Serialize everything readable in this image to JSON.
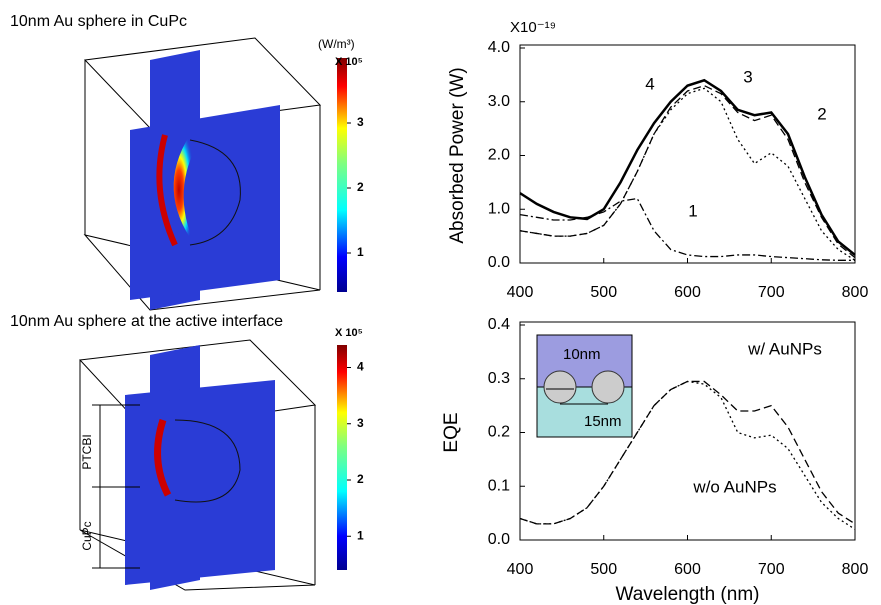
{
  "chart_data": [
    {
      "type": "field",
      "title": "10nm Au sphere in CuPc",
      "units": "(W/m³)",
      "multiplier": "X 10⁵",
      "clim": [
        0.4,
        4.0
      ],
      "cticks": [
        1,
        2,
        3
      ]
    },
    {
      "type": "field",
      "title": "10nm Au sphere at the active interface",
      "multiplier": "X 10⁵",
      "clim": [
        0.4,
        4.4
      ],
      "cticks": [
        1,
        2,
        3,
        4
      ],
      "annotations": [
        "PTCBI",
        "CuPc"
      ]
    },
    {
      "type": "line",
      "ylabel": "Absorbed Power (W)",
      "multiplier": "X10⁻¹⁹",
      "x": [
        400,
        420,
        440,
        460,
        480,
        500,
        520,
        540,
        560,
        580,
        600,
        620,
        640,
        660,
        680,
        700,
        720,
        740,
        760,
        780,
        800
      ],
      "xlim": [
        400,
        800
      ],
      "xticks": [
        400,
        500,
        600,
        700,
        800
      ],
      "ylim": [
        0,
        4
      ],
      "yticks": [
        {
          "value": 0,
          "label": "0.0"
        },
        {
          "value": 1,
          "label": "1.0"
        },
        {
          "value": 2,
          "label": "2.0"
        },
        {
          "value": 3,
          "label": "3.0"
        },
        {
          "value": 4,
          "label": "4.0"
        }
      ],
      "series": [
        {
          "name": "1",
          "color": "#000000",
          "line_style": "dashdot",
          "values": [
            0.9,
            0.85,
            0.8,
            0.8,
            0.85,
            0.95,
            1.15,
            1.2,
            0.6,
            0.25,
            0.15,
            0.12,
            0.12,
            0.15,
            0.15,
            0.12,
            0.1,
            0.08,
            0.06,
            0.05,
            0.05
          ]
        },
        {
          "name": "2",
          "color": "#000000",
          "line_style": "dotted",
          "values": [
            0.6,
            0.55,
            0.5,
            0.5,
            0.55,
            0.7,
            1.1,
            1.7,
            2.4,
            2.85,
            3.15,
            3.25,
            3.0,
            2.3,
            1.85,
            2.05,
            1.8,
            1.2,
            0.6,
            0.25,
            0.05
          ]
        },
        {
          "name": "3",
          "color": "#000000",
          "line_style": "dashed",
          "values": [
            0.6,
            0.55,
            0.5,
            0.5,
            0.55,
            0.7,
            1.1,
            1.7,
            2.4,
            2.9,
            3.2,
            3.3,
            3.15,
            2.8,
            2.65,
            2.75,
            2.3,
            1.5,
            0.85,
            0.35,
            0.1
          ]
        },
        {
          "name": "4",
          "color": "#000000",
          "line_style": "solid",
          "values": [
            1.3,
            1.1,
            0.95,
            0.85,
            0.82,
            1.0,
            1.5,
            2.1,
            2.6,
            3.0,
            3.3,
            3.4,
            3.2,
            2.85,
            2.75,
            2.8,
            2.4,
            1.6,
            0.9,
            0.4,
            0.15
          ]
        }
      ]
    },
    {
      "type": "line",
      "ylabel": "EQE",
      "xlabel": "Wavelength (nm)",
      "x": [
        400,
        420,
        440,
        460,
        480,
        500,
        520,
        540,
        560,
        580,
        600,
        620,
        640,
        660,
        680,
        700,
        720,
        740,
        760,
        780,
        800
      ],
      "xlim": [
        400,
        800
      ],
      "xticks": [
        400,
        500,
        600,
        700,
        800
      ],
      "ylim": [
        0,
        0.4
      ],
      "yticks": [
        {
          "value": 0,
          "label": "0.0"
        },
        {
          "value": 0.1,
          "label": "0.1"
        },
        {
          "value": 0.2,
          "label": "0.2"
        },
        {
          "value": 0.3,
          "label": "0.3"
        },
        {
          "value": 0.4,
          "label": "0.4"
        }
      ],
      "annotations": [
        "10nm",
        "15nm"
      ],
      "series": [
        {
          "name": "w/ AuNPs",
          "color": "#000000",
          "line_style": "dashed",
          "values": [
            0.04,
            0.03,
            0.03,
            0.04,
            0.06,
            0.1,
            0.15,
            0.2,
            0.25,
            0.28,
            0.295,
            0.295,
            0.27,
            0.24,
            0.24,
            0.25,
            0.21,
            0.15,
            0.09,
            0.05,
            0.03
          ]
        },
        {
          "name": "w/o AuNPs",
          "color": "#000000",
          "line_style": "dotted",
          "values": [
            0.04,
            0.03,
            0.03,
            0.04,
            0.06,
            0.1,
            0.15,
            0.2,
            0.25,
            0.28,
            0.295,
            0.29,
            0.265,
            0.2,
            0.19,
            0.195,
            0.17,
            0.12,
            0.07,
            0.04,
            0.02
          ]
        }
      ]
    }
  ]
}
